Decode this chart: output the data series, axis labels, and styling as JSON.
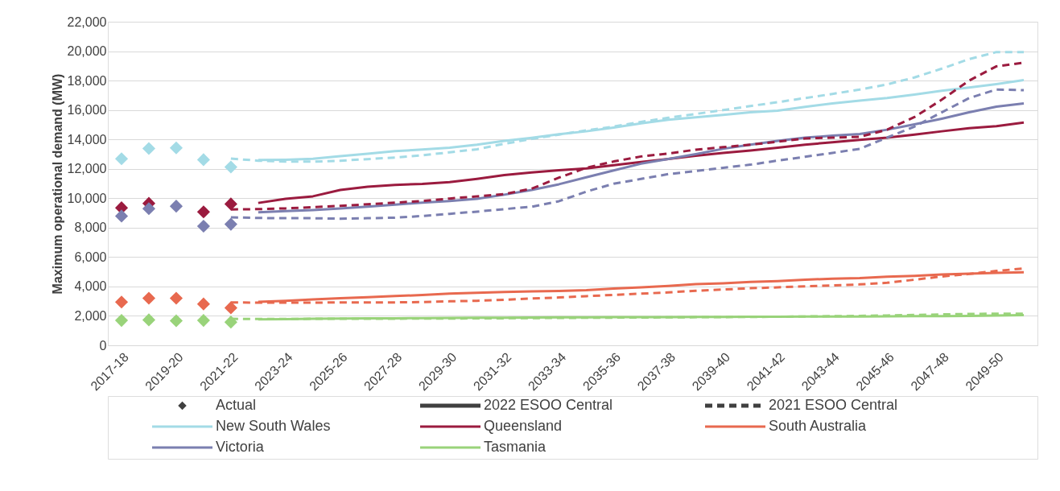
{
  "chart_data": {
    "type": "line",
    "ylabel": "Maximum operational demand (MW)",
    "categories": [
      "2017-18",
      null,
      "2019-20",
      null,
      "2021-22",
      null,
      "2023-24",
      null,
      "2025-26",
      null,
      "2027-28",
      null,
      "2029-30",
      null,
      "2031-32",
      null,
      "2033-34",
      null,
      "2035-36",
      null,
      "2037-38",
      null,
      "2039-40",
      null,
      "2041-42",
      null,
      "2043-44",
      null,
      "2045-46",
      null,
      "2047-48",
      null,
      "2049-50",
      null
    ],
    "ylim": [
      0,
      22000
    ],
    "yticks": [
      {
        "value": 0,
        "label": "0"
      },
      {
        "value": 2000,
        "label": "2,000"
      },
      {
        "value": 4000,
        "label": "4,000"
      },
      {
        "value": 6000,
        "label": "6,000"
      },
      {
        "value": 8000,
        "label": "8,000"
      },
      {
        "value": 10000,
        "label": "10,000"
      },
      {
        "value": 12000,
        "label": "12,000"
      },
      {
        "value": 14000,
        "label": "14,000"
      },
      {
        "value": 16000,
        "label": "16,000"
      },
      {
        "value": 18000,
        "label": "18,000"
      },
      {
        "value": 20000,
        "label": "20,000"
      },
      {
        "value": 22000,
        "label": "22,000"
      }
    ],
    "grid": "y",
    "legend": "bottom",
    "series": [
      {
        "name": "Actual",
        "type": "scatter",
        "marker": "diamond",
        "color": "#404040",
        "values": [
          null,
          null,
          null,
          null,
          null,
          null,
          null,
          null,
          null,
          null,
          null,
          null,
          null,
          null,
          null,
          null,
          null,
          null,
          null,
          null,
          null,
          null,
          null,
          null,
          null,
          null,
          null,
          null,
          null,
          null,
          null,
          null,
          null,
          null
        ]
      },
      {
        "name": "2022 ESOO Central",
        "type": "line",
        "line_style": "solid",
        "color": "#404040",
        "values": [
          null,
          null,
          null,
          null,
          null,
          null,
          null,
          null,
          null,
          null,
          null,
          null,
          null,
          null,
          null,
          null,
          null,
          null,
          null,
          null,
          null,
          null,
          null,
          null,
          null,
          null,
          null,
          null,
          null,
          null,
          null,
          null,
          null,
          null
        ]
      },
      {
        "name": "2021 ESOO Central",
        "type": "line",
        "line_style": "dashed",
        "color": "#404040",
        "values": [
          null,
          null,
          null,
          null,
          null,
          null,
          null,
          null,
          null,
          null,
          null,
          null,
          null,
          null,
          null,
          null,
          null,
          null,
          null,
          null,
          null,
          null,
          null,
          null,
          null,
          null,
          null,
          null,
          null,
          null,
          null,
          null,
          null,
          null
        ]
      },
      {
        "name": "New South Wales",
        "type": "line",
        "line_style": "solid",
        "color": "#a3dbe6",
        "values": [
          null,
          null,
          null,
          null,
          null,
          12600,
          12620,
          12680,
          12860,
          13030,
          13200,
          13310,
          13440,
          13640,
          13900,
          14110,
          14350,
          14550,
          14800,
          15090,
          15340,
          15500,
          15670,
          15840,
          15950,
          16210,
          16440,
          16640,
          16810,
          17050,
          17310,
          17520,
          17760,
          18040
        ]
      },
      {
        "name": "Queensland",
        "type": "line",
        "line_style": "solid",
        "color": "#9b1b3f",
        "values": [
          null,
          null,
          null,
          null,
          null,
          9680,
          9960,
          10130,
          10560,
          10780,
          10910,
          10970,
          11100,
          11320,
          11580,
          11750,
          11900,
          12030,
          12240,
          12460,
          12670,
          12890,
          13080,
          13250,
          13430,
          13640,
          13810,
          13970,
          14120,
          14330,
          14550,
          14760,
          14900,
          15150
        ]
      },
      {
        "name": "South Australia",
        "type": "line",
        "line_style": "solid",
        "color": "#e8694f",
        "values": [
          null,
          null,
          null,
          null,
          null,
          2960,
          3030,
          3120,
          3200,
          3270,
          3350,
          3420,
          3510,
          3570,
          3620,
          3660,
          3700,
          3750,
          3860,
          3940,
          4030,
          4160,
          4220,
          4310,
          4370,
          4460,
          4530,
          4570,
          4660,
          4720,
          4810,
          4870,
          4920,
          4970
        ]
      },
      {
        "name": "Victoria",
        "type": "line",
        "line_style": "solid",
        "color": "#7b7fb0",
        "values": [
          null,
          null,
          null,
          null,
          null,
          9050,
          9130,
          9200,
          9310,
          9420,
          9570,
          9700,
          9810,
          9960,
          10240,
          10560,
          10950,
          11420,
          11890,
          12350,
          12670,
          13000,
          13360,
          13640,
          13900,
          14120,
          14250,
          14370,
          14660,
          15020,
          15410,
          15840,
          16230,
          16440
        ]
      },
      {
        "name": "Tasmania",
        "type": "line",
        "line_style": "solid",
        "color": "#99d37a",
        "values": [
          null,
          null,
          null,
          null,
          null,
          1760,
          1780,
          1800,
          1820,
          1830,
          1840,
          1850,
          1860,
          1870,
          1880,
          1890,
          1900,
          1900,
          1910,
          1920,
          1920,
          1930,
          1930,
          1940,
          1940,
          1950,
          1950,
          1960,
          1970,
          1980,
          1990,
          2000,
          2020,
          2050
        ]
      },
      {
        "type": "line",
        "line_style": "dashed",
        "color": "#a3dbe6",
        "values": [
          null,
          null,
          null,
          null,
          12700,
          12550,
          12490,
          12490,
          12550,
          12660,
          12770,
          12920,
          13120,
          13330,
          13700,
          14030,
          14330,
          14610,
          14870,
          15190,
          15470,
          15730,
          15990,
          16270,
          16530,
          16810,
          17090,
          17390,
          17740,
          18210,
          18810,
          19460,
          19940,
          19940
        ]
      },
      {
        "type": "line",
        "line_style": "dashed",
        "color": "#9b1b3f",
        "values": [
          null,
          null,
          null,
          null,
          9240,
          9260,
          9310,
          9390,
          9480,
          9590,
          9700,
          9810,
          9980,
          10130,
          10280,
          10650,
          11400,
          12070,
          12500,
          12840,
          13040,
          13300,
          13470,
          13640,
          13840,
          14070,
          14120,
          14180,
          14660,
          15520,
          16700,
          18000,
          18970,
          19220
        ]
      },
      {
        "type": "line",
        "line_style": "dashed",
        "color": "#e8694f",
        "values": [
          null,
          null,
          null,
          null,
          2920,
          2900,
          2900,
          2900,
          2920,
          2920,
          2920,
          2940,
          2990,
          3030,
          3100,
          3180,
          3250,
          3340,
          3430,
          3510,
          3600,
          3710,
          3790,
          3880,
          3940,
          4010,
          4070,
          4140,
          4250,
          4460,
          4680,
          4850,
          5060,
          5220
        ]
      },
      {
        "type": "line",
        "line_style": "dashed",
        "color": "#7b7fb0",
        "values": [
          null,
          null,
          null,
          null,
          8700,
          8660,
          8640,
          8640,
          8610,
          8640,
          8680,
          8790,
          8940,
          9090,
          9260,
          9420,
          9800,
          10450,
          10990,
          11310,
          11640,
          11850,
          12070,
          12280,
          12560,
          12820,
          13080,
          13360,
          14120,
          14870,
          15840,
          16810,
          17390,
          17350
        ]
      },
      {
        "type": "line",
        "line_style": "dashed",
        "color": "#99d37a",
        "values": [
          null,
          null,
          null,
          null,
          1800,
          1790,
          1790,
          1800,
          1800,
          1810,
          1810,
          1820,
          1820,
          1830,
          1840,
          1850,
          1860,
          1870,
          1880,
          1890,
          1900,
          1910,
          1920,
          1930,
          1940,
          1960,
          1980,
          2000,
          2030,
          2060,
          2100,
          2130,
          2150,
          2150
        ]
      },
      {
        "type": "scatter",
        "marker": "diamond",
        "color": "#a3dbe6",
        "values": [
          12680,
          13380,
          13420,
          12620,
          12120,
          null,
          null,
          null,
          null,
          null,
          null,
          null,
          null,
          null,
          null,
          null,
          null,
          null,
          null,
          null,
          null,
          null,
          null,
          null,
          null,
          null,
          null,
          null,
          null,
          null,
          null,
          null,
          null,
          null
        ]
      },
      {
        "type": "scatter",
        "marker": "diamond",
        "color": "#9b1b3f",
        "values": [
          9350,
          9650,
          null,
          9070,
          9610,
          null,
          null,
          null,
          null,
          null,
          null,
          null,
          null,
          null,
          null,
          null,
          null,
          null,
          null,
          null,
          null,
          null,
          null,
          null,
          null,
          null,
          null,
          null,
          null,
          null,
          null,
          null,
          null,
          null
        ]
      },
      {
        "type": "scatter",
        "marker": "diamond",
        "color": "#7b7fb0",
        "values": [
          8790,
          9290,
          9460,
          8100,
          8230,
          null,
          null,
          null,
          null,
          null,
          null,
          null,
          null,
          null,
          null,
          null,
          null,
          null,
          null,
          null,
          null,
          null,
          null,
          null,
          null,
          null,
          null,
          null,
          null,
          null,
          null,
          null,
          null,
          null
        ]
      },
      {
        "type": "scatter",
        "marker": "diamond",
        "color": "#e8694f",
        "values": [
          2940,
          3200,
          3200,
          2810,
          2550,
          null,
          null,
          null,
          null,
          null,
          null,
          null,
          null,
          null,
          null,
          null,
          null,
          null,
          null,
          null,
          null,
          null,
          null,
          null,
          null,
          null,
          null,
          null,
          null,
          null,
          null,
          null,
          null,
          null
        ]
      },
      {
        "type": "scatter",
        "marker": "diamond",
        "color": "#99d37a",
        "values": [
          1690,
          1730,
          1670,
          1690,
          1580,
          null,
          null,
          null,
          null,
          null,
          null,
          null,
          null,
          null,
          null,
          null,
          null,
          null,
          null,
          null,
          null,
          null,
          null,
          null,
          null,
          null,
          null,
          null,
          null,
          null,
          null,
          null,
          null,
          null
        ]
      }
    ]
  }
}
